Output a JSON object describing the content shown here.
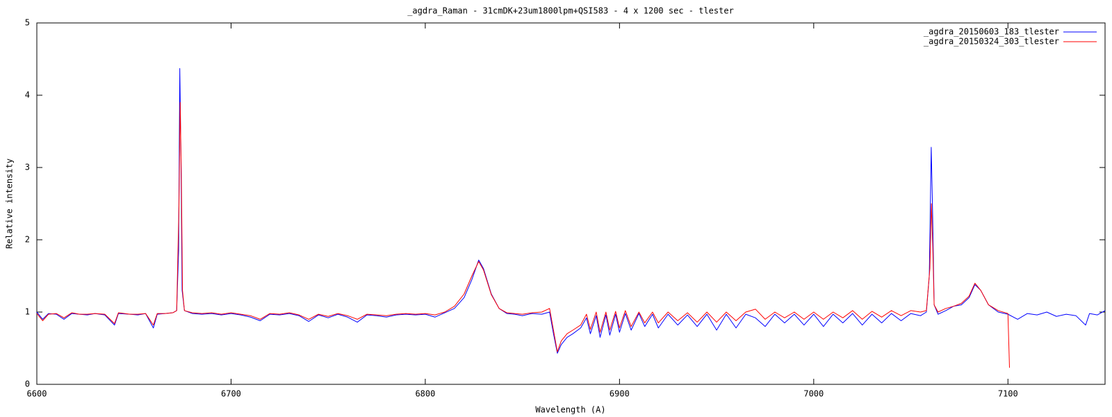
{
  "chart_data": {
    "type": "line",
    "title": "_agdra_Raman - 31cmDK+23um1800lpm+QSI583 - 4 x 1200 sec -  tlester",
    "x_label": "Wavelength (A)",
    "y_label": "Relative intensity",
    "xlim": [
      6600,
      7150
    ],
    "xticks": [
      6600,
      6700,
      6800,
      6900,
      7000,
      7100
    ],
    "ylim": [
      0,
      5
    ],
    "yticks": [
      0,
      1,
      2,
      3,
      4,
      5
    ],
    "legend": "top-right",
    "series": [
      {
        "name": "_agdra_20150603_183_tlester",
        "color": "#0000ff",
        "x": [
          6600,
          6603,
          6606,
          6610,
          6614,
          6618,
          6622,
          6626,
          6630,
          6635,
          6640,
          6642,
          6648,
          6652,
          6656,
          6660,
          6662,
          6666,
          6670,
          6672,
          6673,
          6673.6,
          6674.2,
          6674.8,
          6676,
          6680,
          6685,
          6690,
          6695,
          6700,
          6705,
          6710,
          6715,
          6720,
          6725,
          6730,
          6735,
          6740,
          6745,
          6750,
          6755,
          6760,
          6765,
          6770,
          6775,
          6780,
          6785,
          6790,
          6795,
          6800,
          6805,
          6810,
          6815,
          6820,
          6824,
          6827.5,
          6830,
          6834,
          6838,
          6842,
          6846,
          6850,
          6855,
          6860,
          6864,
          6866,
          6868,
          6870,
          6873,
          6876,
          6880,
          6883,
          6885,
          6888,
          6890,
          6893,
          6895,
          6898,
          6900,
          6903,
          6906,
          6910,
          6913,
          6917,
          6920,
          6925,
          6930,
          6935,
          6940,
          6945,
          6950,
          6955,
          6960,
          6965,
          6970,
          6975,
          6980,
          6985,
          6990,
          6995,
          7000,
          7005,
          7010,
          7015,
          7020,
          7025,
          7030,
          7035,
          7040,
          7045,
          7050,
          7055,
          7058,
          7059.5,
          7060.5,
          7061.2,
          7062,
          7064,
          7068,
          7072,
          7076,
          7080,
          7083,
          7086,
          7090,
          7095,
          7100,
          7105,
          7110,
          7115,
          7120,
          7125,
          7130,
          7135,
          7140,
          7142,
          7146,
          7150
        ],
        "values": [
          1.0,
          0.9,
          0.98,
          0.97,
          0.9,
          0.98,
          0.97,
          0.96,
          0.98,
          0.96,
          0.82,
          0.98,
          0.97,
          0.96,
          0.98,
          0.78,
          0.97,
          0.98,
          0.99,
          1.02,
          1.85,
          4.37,
          3.15,
          1.3,
          1.02,
          0.98,
          0.97,
          0.98,
          0.96,
          0.98,
          0.96,
          0.93,
          0.88,
          0.97,
          0.96,
          0.98,
          0.95,
          0.87,
          0.96,
          0.92,
          0.97,
          0.93,
          0.86,
          0.96,
          0.95,
          0.93,
          0.96,
          0.97,
          0.96,
          0.97,
          0.93,
          0.99,
          1.05,
          1.2,
          1.45,
          1.72,
          1.6,
          1.25,
          1.05,
          0.98,
          0.97,
          0.95,
          0.98,
          0.97,
          1.0,
          0.7,
          0.43,
          0.55,
          0.65,
          0.7,
          0.78,
          0.92,
          0.7,
          0.95,
          0.65,
          0.96,
          0.68,
          0.97,
          0.72,
          0.98,
          0.75,
          0.98,
          0.8,
          0.97,
          0.78,
          0.97,
          0.82,
          0.96,
          0.8,
          0.97,
          0.75,
          0.97,
          0.78,
          0.97,
          0.92,
          0.8,
          0.97,
          0.85,
          0.97,
          0.82,
          0.97,
          0.8,
          0.97,
          0.85,
          0.98,
          0.82,
          0.97,
          0.85,
          0.98,
          0.88,
          0.98,
          0.95,
          1.0,
          1.5,
          3.28,
          2.4,
          1.1,
          0.97,
          1.02,
          1.08,
          1.1,
          1.2,
          1.38,
          1.3,
          1.1,
          1.0,
          0.97,
          0.9,
          0.98,
          0.96,
          1.0,
          0.94,
          0.97,
          0.95,
          0.82,
          0.98,
          0.96,
          1.02
        ]
      },
      {
        "name": "_agdra_20150324_303_tlester",
        "color": "#ff0000",
        "x": [
          6600,
          6603,
          6606,
          6610,
          6614,
          6618,
          6622,
          6626,
          6630,
          6635,
          6640,
          6642,
          6648,
          6652,
          6656,
          6660,
          6662,
          6666,
          6670,
          6672,
          6673.2,
          6673.8,
          6674.4,
          6675,
          6676,
          6680,
          6685,
          6690,
          6695,
          6700,
          6705,
          6710,
          6715,
          6720,
          6725,
          6730,
          6735,
          6740,
          6745,
          6750,
          6755,
          6760,
          6765,
          6770,
          6775,
          6780,
          6785,
          6790,
          6795,
          6800,
          6805,
          6810,
          6815,
          6820,
          6824,
          6827.5,
          6830,
          6834,
          6838,
          6842,
          6846,
          6850,
          6855,
          6860,
          6864,
          6866,
          6868,
          6870,
          6873,
          6876,
          6880,
          6883,
          6885,
          6888,
          6890,
          6893,
          6895,
          6898,
          6900,
          6903,
          6906,
          6910,
          6913,
          6917,
          6920,
          6925,
          6930,
          6935,
          6940,
          6945,
          6950,
          6955,
          6960,
          6965,
          6970,
          6975,
          6980,
          6985,
          6990,
          6995,
          7000,
          7005,
          7010,
          7015,
          7020,
          7025,
          7030,
          7035,
          7040,
          7045,
          7050,
          7055,
          7058,
          7059.8,
          7060.6,
          7061.3,
          7062,
          7064,
          7068,
          7072,
          7076,
          7080,
          7083,
          7086,
          7090,
          7095,
          7100,
          7100.8
        ],
        "values": [
          0.98,
          0.88,
          0.97,
          0.98,
          0.92,
          0.99,
          0.97,
          0.97,
          0.98,
          0.97,
          0.84,
          0.99,
          0.97,
          0.97,
          0.98,
          0.82,
          0.98,
          0.98,
          0.99,
          1.02,
          2.5,
          3.9,
          2.9,
          1.3,
          1.02,
          0.99,
          0.98,
          0.99,
          0.97,
          0.99,
          0.97,
          0.95,
          0.9,
          0.98,
          0.97,
          0.99,
          0.96,
          0.9,
          0.97,
          0.94,
          0.98,
          0.95,
          0.9,
          0.97,
          0.96,
          0.95,
          0.97,
          0.98,
          0.97,
          0.98,
          0.96,
          1.0,
          1.08,
          1.25,
          1.5,
          1.7,
          1.58,
          1.24,
          1.05,
          0.99,
          0.98,
          0.97,
          0.99,
          1.0,
          1.05,
          0.75,
          0.45,
          0.6,
          0.7,
          0.75,
          0.82,
          0.97,
          0.76,
          1.0,
          0.72,
          1.0,
          0.75,
          1.01,
          0.78,
          1.02,
          0.8,
          1.0,
          0.85,
          1.0,
          0.85,
          1.0,
          0.88,
          0.99,
          0.86,
          1.0,
          0.86,
          1.0,
          0.88,
          1.0,
          1.04,
          0.9,
          1.0,
          0.92,
          1.0,
          0.9,
          1.0,
          0.9,
          1.0,
          0.92,
          1.02,
          0.9,
          1.01,
          0.93,
          1.02,
          0.95,
          1.02,
          1.0,
          1.02,
          1.6,
          2.5,
          1.9,
          1.1,
          1.0,
          1.05,
          1.08,
          1.12,
          1.22,
          1.4,
          1.3,
          1.1,
          1.02,
          0.98,
          0.23
        ]
      }
    ]
  }
}
